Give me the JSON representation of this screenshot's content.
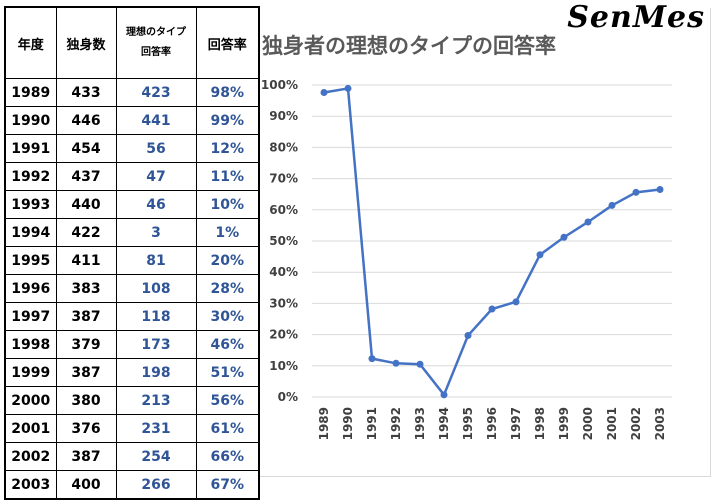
{
  "watermark": "SenMes",
  "table": {
    "headers": [
      "年度",
      "独身数",
      "理想のタイプ\n回答率",
      "回答率"
    ],
    "header_responses_line1": "理想のタイプ",
    "header_responses_line2": "回答率",
    "rows": [
      {
        "year": "1989",
        "single": "433",
        "responses": "423",
        "rate": "98%"
      },
      {
        "year": "1990",
        "single": "446",
        "responses": "441",
        "rate": "99%"
      },
      {
        "year": "1991",
        "single": "454",
        "responses": "56",
        "rate": "12%"
      },
      {
        "year": "1992",
        "single": "437",
        "responses": "47",
        "rate": "11%"
      },
      {
        "year": "1993",
        "single": "440",
        "responses": "46",
        "rate": "10%"
      },
      {
        "year": "1994",
        "single": "422",
        "responses": "3",
        "rate": "1%"
      },
      {
        "year": "1995",
        "single": "411",
        "responses": "81",
        "rate": "20%"
      },
      {
        "year": "1996",
        "single": "383",
        "responses": "108",
        "rate": "28%"
      },
      {
        "year": "1997",
        "single": "387",
        "responses": "118",
        "rate": "30%"
      },
      {
        "year": "1998",
        "single": "379",
        "responses": "173",
        "rate": "46%"
      },
      {
        "year": "1999",
        "single": "387",
        "responses": "198",
        "rate": "51%"
      },
      {
        "year": "2000",
        "single": "380",
        "responses": "213",
        "rate": "56%"
      },
      {
        "year": "2001",
        "single": "376",
        "responses": "231",
        "rate": "61%"
      },
      {
        "year": "2002",
        "single": "387",
        "responses": "254",
        "rate": "66%"
      },
      {
        "year": "2003",
        "single": "400",
        "responses": "266",
        "rate": "67%"
      }
    ]
  },
  "chart_data": {
    "type": "line",
    "title": "独身者の理想のタイプの回答率",
    "xlabel": "",
    "ylabel": "",
    "categories": [
      "1989",
      "1990",
      "1991",
      "1992",
      "1993",
      "1994",
      "1995",
      "1996",
      "1997",
      "1998",
      "1999",
      "2000",
      "2001",
      "2002",
      "2003"
    ],
    "series": [
      {
        "values": [
          97.6,
          98.9,
          12.3,
          10.8,
          10.5,
          0.7,
          19.7,
          28.2,
          30.5,
          45.6,
          51.2,
          56.1,
          61.4,
          65.6,
          66.5
        ]
      }
    ],
    "ylim": [
      0,
      100
    ],
    "yticks": [
      "0%",
      "10%",
      "20%",
      "30%",
      "40%",
      "50%",
      "60%",
      "70%",
      "80%",
      "90%",
      "100%"
    ],
    "grid": true,
    "line_color": "#4472c4"
  }
}
